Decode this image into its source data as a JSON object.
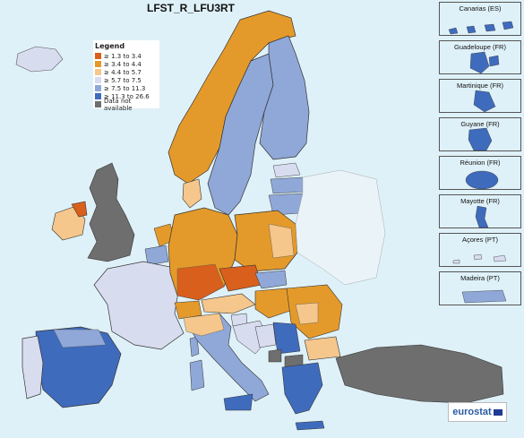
{
  "map": {
    "title": "LFST_R_LFU3RT",
    "colors": {
      "sea": "#dff1f8",
      "class1": "#d95f1c",
      "class2": "#e49a2a",
      "class3": "#f5c78c",
      "class4": "#d7dcef",
      "class5": "#8fa8d8",
      "class6": "#3f6bbd",
      "na": "#6e6e6e"
    }
  },
  "legend": {
    "title": "Legend",
    "items": [
      {
        "label": "≥ 1.3 to 3.4",
        "color": "#d95f1c"
      },
      {
        "label": "≥ 3.4 to 4.4",
        "color": "#e49a2a"
      },
      {
        "label": "≥ 4.4 to 5.7",
        "color": "#f5c78c"
      },
      {
        "label": "≥ 5.7 to 7.5",
        "color": "#d7dcef"
      },
      {
        "label": "≥ 7.5 to 11.3",
        "color": "#8fa8d8"
      },
      {
        "label": "≥ 11.3 to 26.6",
        "color": "#3f6bbd"
      },
      {
        "label": "Data not available",
        "color": "#6e6e6e"
      }
    ]
  },
  "insets": [
    {
      "label": "Canarias (ES)",
      "color": "#3f6bbd"
    },
    {
      "label": "Guadeloupe (FR)",
      "color": "#3f6bbd"
    },
    {
      "label": "Martinique (FR)",
      "color": "#3f6bbd"
    },
    {
      "label": "Guyane (FR)",
      "color": "#3f6bbd"
    },
    {
      "label": "Réunion (FR)",
      "color": "#3f6bbd"
    },
    {
      "label": "Mayotte (FR)",
      "color": "#3f6bbd"
    },
    {
      "label": "Açores (PT)",
      "color": "#d7dcef"
    },
    {
      "label": "Madeira (PT)",
      "color": "#8fa8d8"
    }
  ],
  "logo": {
    "text": "eurostat"
  }
}
